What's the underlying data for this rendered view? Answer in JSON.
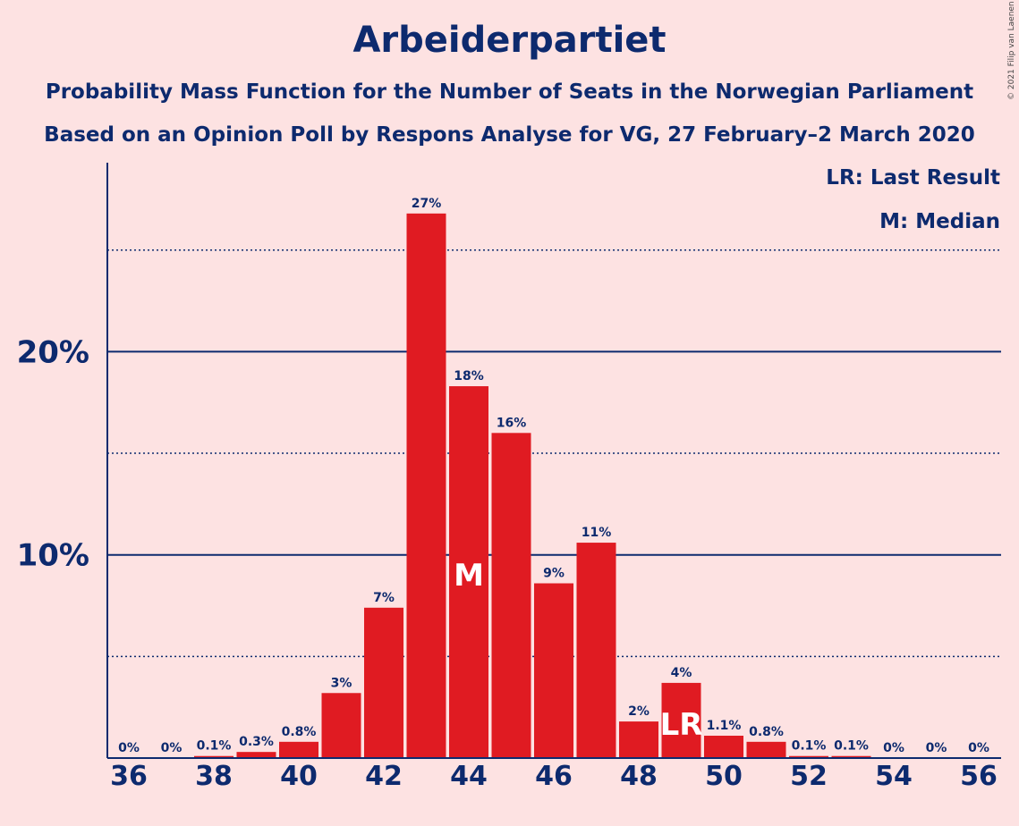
{
  "chart_data": {
    "type": "bar",
    "title": "Arbeiderpartiet",
    "subtitle_1": "Probability Mass Function for the Number of Seats in the Norwegian Parliament",
    "subtitle_2": "Based on an Opinion Poll by Respons Analyse for VG, 27 February–2 March 2020",
    "copyright": "© 2021 Filip van Laenen",
    "legend": {
      "last_result": "LR: Last Result",
      "median": "M: Median"
    },
    "categories": [
      36,
      37,
      38,
      39,
      40,
      41,
      42,
      43,
      44,
      45,
      46,
      47,
      48,
      49,
      50,
      51,
      52,
      53,
      54,
      55,
      56
    ],
    "values": [
      0,
      0,
      0.1,
      0.3,
      0.8,
      3.2,
      7.4,
      26.8,
      18.3,
      16.0,
      8.6,
      10.6,
      1.8,
      3.7,
      1.1,
      0.8,
      0.1,
      0.1,
      0,
      0,
      0
    ],
    "value_labels": [
      "0%",
      "0%",
      "0.1%",
      "0.3%",
      "0.8%",
      "3%",
      "7%",
      "27%",
      "18%",
      "16%",
      "9%",
      "11%",
      "2%",
      "4%",
      "1.1%",
      "0.8%",
      "0.1%",
      "0.1%",
      "0%",
      "0%",
      "0%"
    ],
    "x_tick_labels": [
      "36",
      "38",
      "40",
      "42",
      "44",
      "46",
      "48",
      "50",
      "52",
      "54",
      "56"
    ],
    "y_tick_labels": [
      "10%",
      "20%"
    ],
    "ylim": [
      0,
      29.2
    ],
    "gridlines_solid": [
      10,
      20
    ],
    "gridlines_dotted": [
      5,
      15,
      25
    ],
    "median": {
      "seats": 44,
      "label": "M"
    },
    "last_result": {
      "seats": 49,
      "label": "LR"
    },
    "colors": {
      "bar": "#e01b22",
      "text": "#0d2a6e",
      "background": "#fde2e2"
    }
  }
}
